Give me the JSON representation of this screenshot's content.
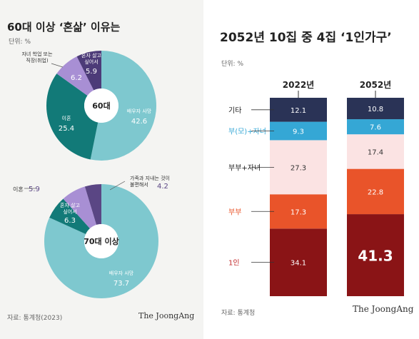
{
  "left": {
    "title": "60대 이상 ‘혼삶’ 이유는",
    "unit": "단위: %",
    "source": "자료: 통계청(2023)",
    "brand": "The JoongAng"
  },
  "right": {
    "title": "2052년 10집 중 4집 ‘1인가구’",
    "unit": "단위: %",
    "source": "자료: 통계청",
    "brand": "The JoongAng"
  },
  "colors": {
    "spouse": "#7ec8cf",
    "divorce": "#127a78",
    "work": "#a88fd4",
    "alone": "#4c3b78",
    "family": "#5a4684",
    "y_etc": "#2a3356",
    "y_parent": "#35a7d5",
    "y_couple_child": "#fbe3e3",
    "y_couple": "#e9542a",
    "y_single": "#8a1416"
  },
  "chart_data": [
    {
      "type": "pie",
      "center_label": "60대",
      "slices": [
        {
          "key": "spouse",
          "label": "배우자 사망",
          "value": 42.6
        },
        {
          "key": "divorce",
          "label": "이혼",
          "value": 25.4
        },
        {
          "key": "work",
          "label": "자녀 학업 또는 직장(취업)",
          "value": 6.2
        },
        {
          "key": "alone",
          "label": "혼자 살고 싶어서",
          "value": 5.9
        }
      ]
    },
    {
      "type": "pie",
      "center_label": "70대 이상",
      "slices": [
        {
          "key": "spouse",
          "label": "배우자 사망",
          "value": 73.7
        },
        {
          "key": "divorce",
          "label": "이혼",
          "value": 5.9
        },
        {
          "key": "work",
          "label": "혼자 살고 싶어서",
          "value": 6.3
        },
        {
          "key": "family",
          "label": "가족과 지내는 것이 불편해서",
          "value": 4.2
        }
      ]
    },
    {
      "type": "bar",
      "stacked": true,
      "categories": [
        "2022년",
        "2052년"
      ],
      "series": [
        {
          "key": "y_single",
          "name": "1인",
          "values": [
            34.1,
            41.3
          ]
        },
        {
          "key": "y_couple",
          "name": "부부",
          "values": [
            17.3,
            22.8
          ]
        },
        {
          "key": "y_couple_child",
          "name": "부부+자녀",
          "values": [
            27.3,
            17.4
          ]
        },
        {
          "key": "y_parent",
          "name": "부(모)+자녀",
          "values": [
            9.3,
            7.6
          ]
        },
        {
          "key": "y_etc",
          "name": "기타",
          "values": [
            12.1,
            10.8
          ]
        }
      ]
    }
  ]
}
